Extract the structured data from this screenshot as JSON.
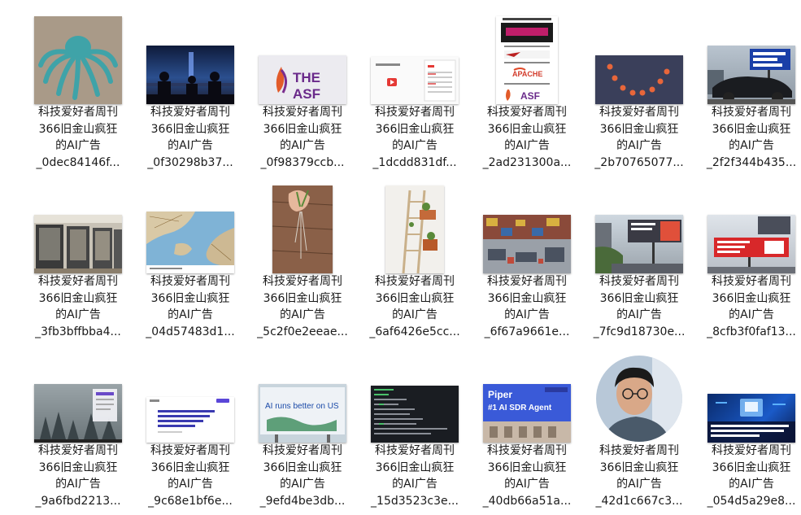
{
  "files": [
    {
      "line1": "科技爱好者周刊",
      "line2": "366旧金山疯狂",
      "line3": "的AI广告",
      "line4": "_0dec84146f...",
      "thumb_icon": "octopus-metal-art-thumbnail-icon"
    },
    {
      "line1": "科技爱好者周刊",
      "line2": "366旧金山疯狂",
      "line3": "的AI广告",
      "line4": "_0f30298b37...",
      "thumb_icon": "night-city-silhouettes-thumbnail-icon"
    },
    {
      "line1": "科技爱好者周刊",
      "line2": "366旧金山疯狂",
      "line3": "的AI广告",
      "line4": "_0f98379ccb...",
      "thumb_icon": "asf-logo-thumbnail-icon",
      "thumb_text": "THE ASF"
    },
    {
      "line1": "科技爱好者周刊",
      "line2": "366旧金山疯狂",
      "line3": "的AI广告",
      "line4": "_1dcdd831df...",
      "thumb_icon": "webpage-screenshot-thumbnail-icon"
    },
    {
      "line1": "科技爱好者周刊",
      "line2": "366旧金山疯狂",
      "line3": "的AI广告",
      "line4": "_2ad231300a...",
      "thumb_icon": "apache-logo-history-thumbnail-icon",
      "thumb_text": "APACHE",
      "thumb_text2": "ASF"
    },
    {
      "line1": "科技爱好者周刊",
      "line2": "366旧金山疯狂",
      "line3": "的AI广告",
      "line4": "_2b70765077...",
      "thumb_icon": "dots-arc-diagram-thumbnail-icon"
    },
    {
      "line1": "科技爱好者周刊",
      "line2": "366旧金山疯狂",
      "line3": "的AI广告",
      "line4": "_2f2f344b435...",
      "thumb_icon": "billboard-car-thumbnail-icon"
    },
    {
      "line1": "科技爱好者周刊",
      "line2": "366旧金山疯狂",
      "line3": "的AI广告",
      "line4": "_3fb3bffbba4...",
      "thumb_icon": "office-booths-thumbnail-icon"
    },
    {
      "line1": "科技爱好者周刊",
      "line2": "366旧金山疯狂",
      "line3": "的AI广告",
      "line4": "_04d57483d1...",
      "thumb_icon": "map-illustration-thumbnail-icon"
    },
    {
      "line1": "科技爱好者周刊",
      "line2": "366旧金山疯狂",
      "line3": "的AI广告",
      "line4": "_5c2f0e2eeae...",
      "thumb_icon": "hand-plant-roots-thumbnail-icon"
    },
    {
      "line1": "科技爱好者周刊",
      "line2": "366旧金山疯狂",
      "line3": "的AI广告",
      "line4": "_6af6426e5cc...",
      "thumb_icon": "ladder-plant-stand-thumbnail-icon"
    },
    {
      "line1": "科技爱好者周刊",
      "line2": "366旧金山疯狂",
      "line3": "的AI广告",
      "line4": "_6f67a9661e...",
      "thumb_icon": "warehouse-furniture-thumbnail-icon"
    },
    {
      "line1": "科技爱好者周刊",
      "line2": "366旧金山疯狂",
      "line3": "的AI广告",
      "line4": "_7fc9d18730e...",
      "thumb_icon": "street-billboard-thumbnail-icon"
    },
    {
      "line1": "科技爱好者周刊",
      "line2": "366旧金山疯狂",
      "line3": "的AI广告",
      "line4": "_8cfb3f0faf13...",
      "thumb_icon": "red-billboard-thumbnail-icon"
    },
    {
      "line1": "科技爱好者周刊",
      "line2": "366旧金山疯狂",
      "line3": "的AI广告",
      "line4": "_9a6fbd2213...",
      "thumb_icon": "foggy-forest-desktop-thumbnail-icon"
    },
    {
      "line1": "科技爱好者周刊",
      "line2": "366旧金山疯狂",
      "line3": "的AI广告",
      "line4": "_9c68e1bf6e...",
      "thumb_icon": "text-webpage-thumbnail-icon"
    },
    {
      "line1": "科技爱好者周刊",
      "line2": "366旧金山疯狂",
      "line3": "的AI广告",
      "line4": "_9efd4be3db...",
      "thumb_icon": "ai-runs-better-billboard-thumbnail-icon",
      "thumb_text": "AI runs better on US"
    },
    {
      "line1": "科技爱好者周刊",
      "line2": "366旧金山疯狂",
      "line3": "的AI广告",
      "line4": "_15d3523c3e...",
      "thumb_icon": "terminal-screenshot-thumbnail-icon"
    },
    {
      "line1": "科技爱好者周刊",
      "line2": "366旧金山疯狂",
      "line3": "的AI广告",
      "line4": "_40db66a51a...",
      "thumb_icon": "piper-billboard-thumbnail-icon",
      "thumb_text": "Piper",
      "thumb_text2": "#1 AI SDR Agent"
    },
    {
      "line1": "科技爱好者周刊",
      "line2": "366旧金山疯狂",
      "line3": "的AI广告",
      "line4": "_42d1c667c3...",
      "thumb_icon": "portrait-circle-thumbnail-icon"
    },
    {
      "line1": "科技爱好者周刊",
      "line2": "366旧金山疯狂",
      "line3": "的AI广告",
      "line4": "_054d5a29e8...",
      "thumb_icon": "blue-tech-banner-thumbnail-icon"
    }
  ]
}
